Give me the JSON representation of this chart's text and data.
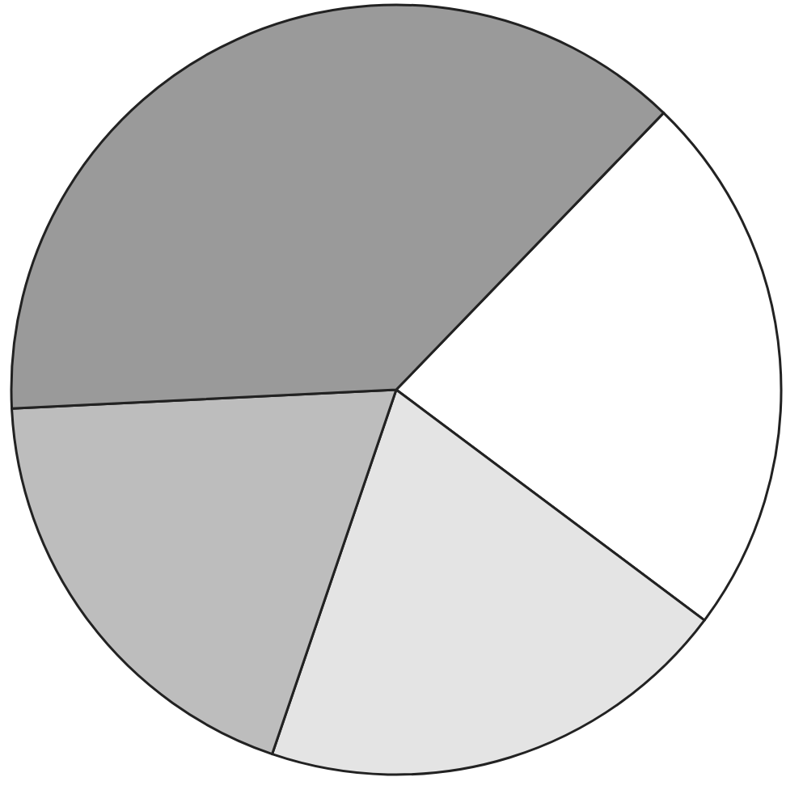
{
  "chart_data": {
    "type": "pie",
    "categories": [
      null,
      null,
      null,
      null
    ],
    "values": [
      23,
      20,
      19,
      38
    ],
    "colors": [
      "#ffffff",
      "#e4e4e4",
      "#bdbdbd",
      "#9a9a9a"
    ]
  }
}
